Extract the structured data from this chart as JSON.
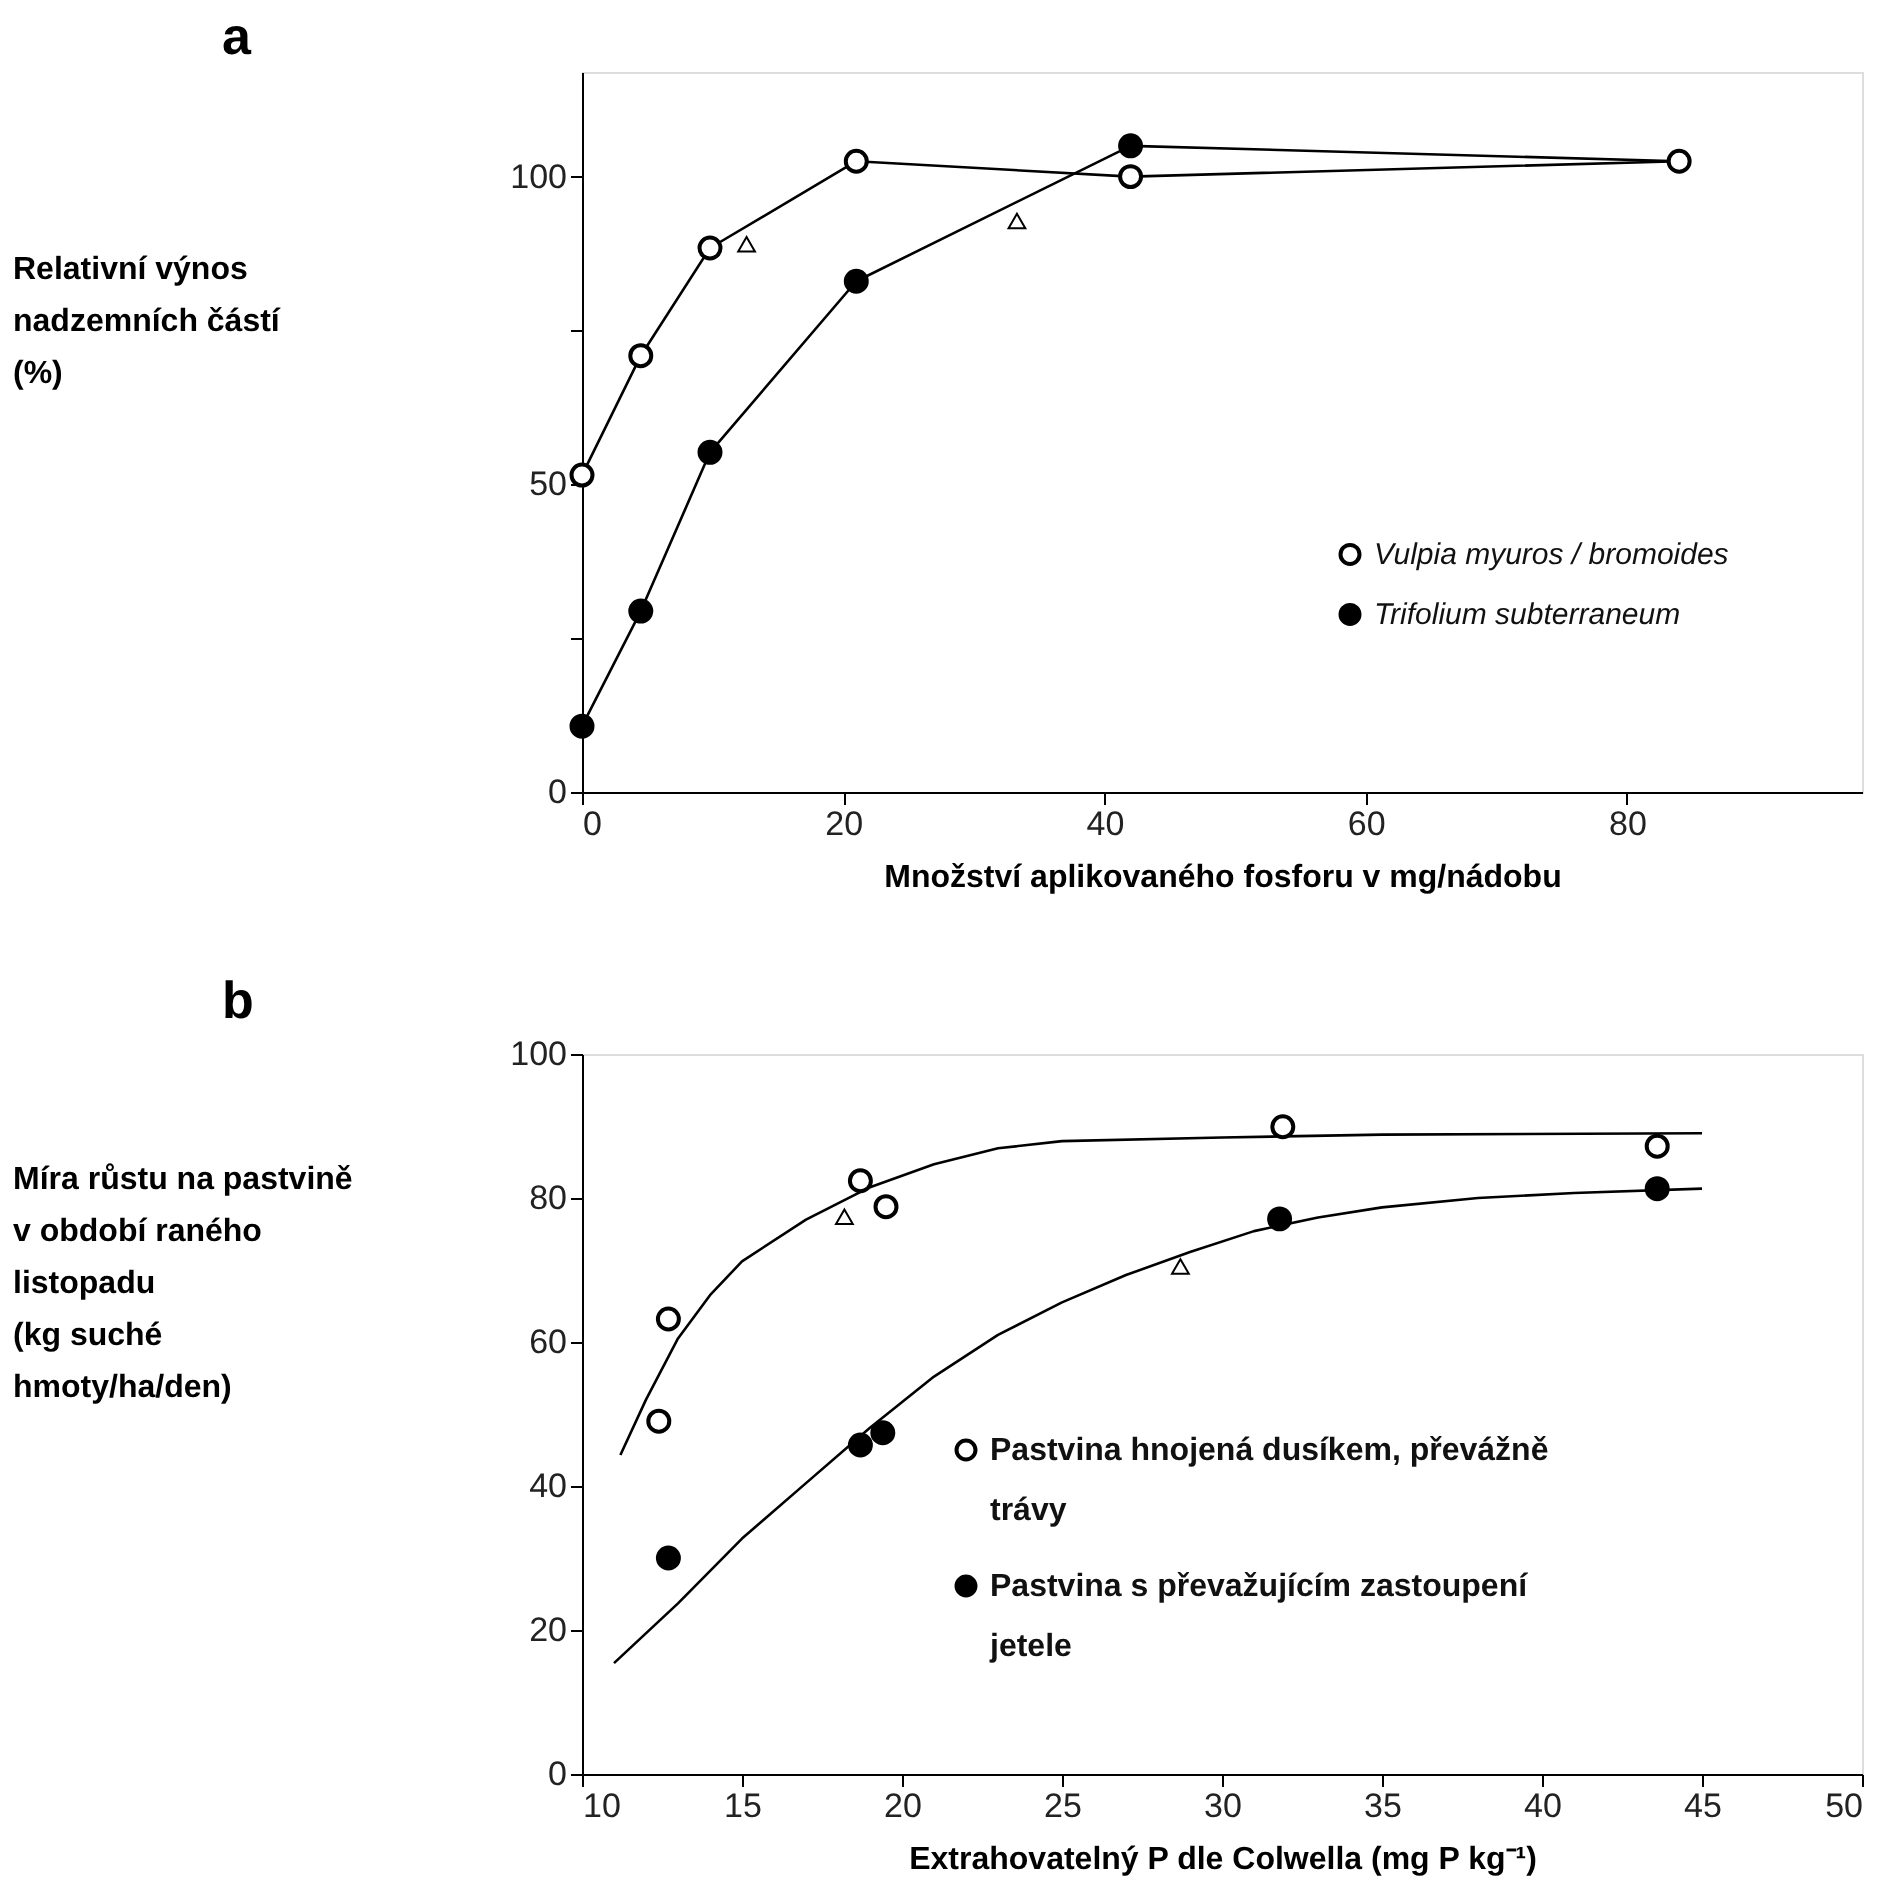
{
  "chart_data": [
    {
      "type": "line",
      "title": "a",
      "ylabel": "Relativní výnos nadzemních částí (%)",
      "xlabel": "Množství aplikovaného fosforu v mg/nádobu",
      "xlim": [
        0,
        98
      ],
      "xticks": [
        0,
        20,
        40,
        60,
        80
      ],
      "ylim": [
        0,
        117
      ],
      "yticks": [
        0,
        {
          "value": 25,
          "label": null
        },
        50,
        {
          "value": 75,
          "label": null
        },
        100
      ],
      "grid": false,
      "legend": "bottom right",
      "series": [
        {
          "color": "#000000",
          "marker": "none",
          "line_style": "solid",
          "x": [
            0,
            4.5,
            9.8,
            21,
            42,
            84
          ],
          "values": [
            51.5,
            70.9,
            88.4,
            102.5,
            100,
            102.5
          ]
        },
        {
          "color": "#000000",
          "marker": "none",
          "line_style": "solid",
          "x": [
            0,
            4.5,
            9.8,
            21,
            42,
            84
          ],
          "values": [
            10.7,
            29.4,
            55.2,
            83,
            105,
            102.5
          ]
        },
        {
          "type": "scatter",
          "name": "Vulpia myuros / bromoides",
          "color": "#ffffff",
          "marker": "circle",
          "x": [
            0,
            4.5,
            9.8,
            21,
            42,
            84
          ],
          "values": [
            51.5,
            70.9,
            88.4,
            102.5,
            100,
            102.5
          ]
        },
        {
          "type": "scatter",
          "name": "Trifolium subterraneum",
          "color": "#000000",
          "marker": "circle",
          "x": [
            0,
            4.5,
            9.8,
            21,
            42
          ],
          "values": [
            10.7,
            29.4,
            55.2,
            83,
            105
          ]
        },
        {
          "type": "scatter",
          "color": "#ffffff",
          "marker": "triangle",
          "x": [
            12.6,
            33.3
          ],
          "values": [
            89,
            92.8
          ]
        }
      ]
    },
    {
      "type": "scatter",
      "title": "b",
      "ylabel": "Míra růstu na pastvině v období raného listopadu (kg suché hmoty/ha/den)",
      "xlabel": "Extrahovatelný P dle Colwella (mg P kg⁻¹)",
      "xlim": [
        10,
        50
      ],
      "xticks": [
        10,
        15,
        20,
        25,
        30,
        35,
        40,
        45,
        50
      ],
      "ylim": [
        0,
        100
      ],
      "yticks": [
        0,
        20,
        40,
        60,
        80,
        100
      ],
      "grid": false,
      "legend": "bottom",
      "series": [
        {
          "type": "line",
          "color": "#000000",
          "marker": "none",
          "line_style": "solid",
          "x": [
            11.2,
            12,
            13,
            14,
            15,
            17,
            19,
            21,
            23,
            25,
            30,
            35,
            45
          ],
          "values": [
            44.3,
            52,
            60.5,
            66.5,
            71.2,
            77,
            81.5,
            84.7,
            86.9,
            87.9,
            88.4,
            88.8,
            89
          ]
        },
        {
          "type": "line",
          "color": "#000000",
          "marker": "none",
          "line_style": "solid",
          "x": [
            11,
            13,
            15,
            17,
            19,
            21,
            23,
            25,
            27,
            29,
            31,
            33,
            35,
            38,
            41,
            45
          ],
          "values": [
            15.4,
            23.7,
            32.7,
            40.4,
            48.1,
            55.2,
            61,
            65.5,
            69.3,
            72.5,
            75.4,
            77.3,
            78.7,
            80,
            80.7,
            81.3
          ]
        },
        {
          "name": "Pastvina hnojená dusíkem, převážně trávy",
          "color": "#ffffff",
          "marker": "circle",
          "x": [
            12.4,
            12.7,
            18.7,
            19.5,
            31.9,
            43.6
          ],
          "values": [
            49,
            63.2,
            82.4,
            78.8,
            89.9,
            87.2
          ]
        },
        {
          "name": "Pastvina s převažujícím zastoupení jetele",
          "color": "#000000",
          "marker": "circle",
          "x": [
            12.7,
            18.7,
            19.4,
            31.8,
            43.6
          ],
          "values": [
            30,
            45.7,
            47.4,
            77.1,
            81.3
          ]
        },
        {
          "color": "#ffffff",
          "marker": "triangle",
          "x": [
            18.2,
            28.7
          ],
          "values": [
            77.4,
            70.5
          ]
        }
      ]
    }
  ]
}
